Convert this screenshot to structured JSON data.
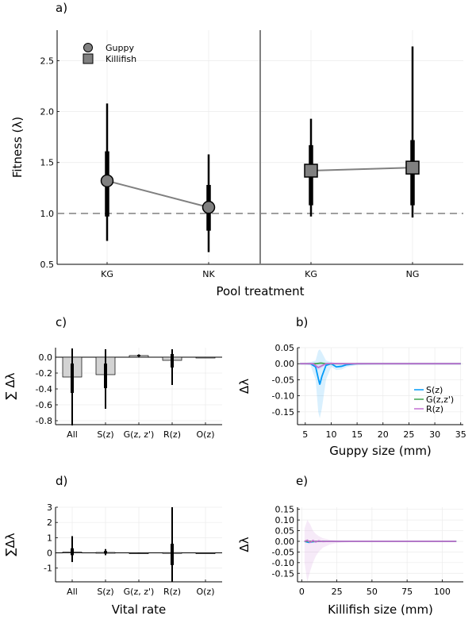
{
  "chart_data": [
    {
      "panel": "a)",
      "type": "scatter",
      "xlabel": "Pool treatment",
      "ylabel": "Fitness (λ)",
      "ylim": [
        0.5,
        2.8
      ],
      "yticks": [
        0.5,
        1.0,
        1.5,
        2.0,
        2.5
      ],
      "ytick_labels": [
        "0.5",
        "1.0",
        "1.5",
        "2.0",
        "2.5"
      ],
      "categories": [
        "KG",
        "NK",
        "KG",
        "NG"
      ],
      "reference_line": 1.0,
      "legend": {
        "position": "top-left",
        "entries": [
          "Guppy",
          "Killifish"
        ]
      },
      "series": [
        {
          "name": "Guppy",
          "marker": "circle",
          "color": "#808080",
          "points": [
            {
              "cat": 0,
              "y": 1.32,
              "lo95": 0.73,
              "hi95": 2.08,
              "lo50": 0.97,
              "hi50": 1.61
            },
            {
              "cat": 1,
              "y": 1.06,
              "lo95": 0.62,
              "hi95": 1.58,
              "lo50": 0.83,
              "hi50": 1.28
            }
          ]
        },
        {
          "name": "Killifish",
          "marker": "square",
          "color": "#808080",
          "points": [
            {
              "cat": 2,
              "y": 1.42,
              "lo95": 0.97,
              "hi95": 1.93,
              "lo50": 1.08,
              "hi50": 1.67
            },
            {
              "cat": 3,
              "y": 1.45,
              "lo95": 0.96,
              "hi95": 2.64,
              "lo50": 1.08,
              "hi50": 1.72
            }
          ]
        }
      ]
    },
    {
      "panel": "c)",
      "type": "bar",
      "xlabel": "",
      "ylabel": "∑ Δλ",
      "ylim": [
        -0.85,
        0.12
      ],
      "yticks": [
        0.0,
        -0.2,
        -0.4,
        -0.6,
        -0.8
      ],
      "ytick_labels": [
        "0.0",
        "-0.2",
        "-0.4",
        "-0.6",
        "-0.8"
      ],
      "categories": [
        "All",
        "S(z)",
        "G(z, z')",
        "R(z)",
        "O(z)"
      ],
      "values": [
        -0.25,
        -0.22,
        0.02,
        -0.04,
        0.0
      ],
      "interval95": [
        [
          -0.86,
          0.11
        ],
        [
          -0.65,
          0.1
        ],
        [
          0.005,
          0.035
        ],
        [
          -0.35,
          0.1
        ],
        [
          0,
          0
        ]
      ],
      "interval50": [
        [
          -0.45,
          -0.08
        ],
        [
          -0.39,
          -0.08
        ],
        [
          0.01,
          0.03
        ],
        [
          -0.13,
          0.04
        ],
        [
          0,
          0
        ]
      ]
    },
    {
      "panel": "b)",
      "type": "line",
      "xlabel": "Guppy size (mm)",
      "ylabel": "Δλ",
      "xlim": [
        3.5,
        35.5
      ],
      "ylim": [
        -0.19,
        0.05
      ],
      "xticks": [
        5,
        10,
        15,
        20,
        25,
        30,
        35
      ],
      "xtick_labels": [
        "5",
        "10",
        "15",
        "20",
        "25",
        "30",
        "35"
      ],
      "yticks": [
        0.05,
        0.0,
        -0.05,
        -0.1,
        -0.15
      ],
      "ytick_labels": [
        "0.05",
        "0.00",
        "-0.05",
        "-0.10",
        "-0.15"
      ],
      "legend": {
        "position": "bottom-right",
        "entries": [
          "S(z)",
          "G(z,z')",
          "R(z)"
        ]
      },
      "series": [
        {
          "name": "S(z)",
          "color": "#009af9",
          "x": [
            4,
            6,
            7,
            7.5,
            7.8,
            8.2,
            9,
            10,
            11,
            12,
            13,
            15,
            20,
            25,
            35
          ],
          "y": [
            0,
            0,
            -0.01,
            -0.045,
            -0.065,
            -0.04,
            -0.005,
            0,
            -0.01,
            -0.008,
            -0.003,
            0,
            0,
            0,
            0
          ],
          "band_lo": [
            0,
            -0.005,
            -0.05,
            -0.15,
            -0.17,
            -0.14,
            -0.05,
            -0.01,
            -0.02,
            -0.018,
            -0.01,
            -0.004,
            -0.002,
            0,
            0
          ],
          "band_hi": [
            0,
            0.005,
            0.01,
            0.04,
            0.045,
            0.035,
            0.01,
            0.005,
            0.002,
            0.003,
            0.003,
            0.002,
            0.001,
            0,
            0
          ]
        },
        {
          "name": "G(z,z')",
          "color": "#3da44d",
          "x": [
            4,
            7,
            8,
            9,
            12,
            35
          ],
          "y": [
            0,
            0,
            0.002,
            0,
            0,
            0
          ]
        },
        {
          "name": "R(z)",
          "color": "#c271d2",
          "x": [
            4,
            6.5,
            7.5,
            8,
            9,
            10,
            12,
            35
          ],
          "y": [
            0,
            0,
            -0.012,
            -0.008,
            0,
            0.001,
            0,
            0
          ],
          "band_lo": [
            0,
            -0.002,
            -0.02,
            -0.015,
            -0.004,
            -0.002,
            -0.001,
            0
          ],
          "band_hi": [
            0,
            0.002,
            0.004,
            0.004,
            0.002,
            0.002,
            0.001,
            0
          ]
        }
      ]
    },
    {
      "panel": "d)",
      "type": "bar",
      "xlabel": "Vital rate",
      "ylabel": "∑Δλ",
      "ylim": [
        -1.9,
        3.0
      ],
      "yticks": [
        3,
        2,
        1,
        0,
        -1
      ],
      "ytick_labels": [
        "3",
        "2",
        "1",
        "0",
        "-1"
      ],
      "categories": [
        "All",
        "S(z)",
        "G(z, z')",
        "R(z)",
        "O(z)"
      ],
      "values": [
        0.05,
        0.03,
        0.0,
        0.02,
        0.0
      ],
      "interval95": [
        [
          -0.6,
          1.1
        ],
        [
          -0.15,
          0.25
        ],
        [
          -0.02,
          0.02
        ],
        [
          -1.9,
          3.0
        ],
        [
          0,
          0
        ]
      ],
      "interval50": [
        [
          -0.15,
          0.3
        ],
        [
          -0.05,
          0.12
        ],
        [
          -0.01,
          0.01
        ],
        [
          -0.8,
          0.6
        ],
        [
          0,
          0
        ]
      ]
    },
    {
      "panel": "e)",
      "type": "line",
      "xlabel": "Killifish size (mm)",
      "ylabel": "Δλ",
      "xlim": [
        -3,
        115
      ],
      "ylim": [
        -0.19,
        0.16
      ],
      "xticks": [
        0,
        25,
        50,
        75,
        100
      ],
      "xtick_labels": [
        "0",
        "25",
        "50",
        "75",
        "100"
      ],
      "yticks": [
        0.15,
        0.1,
        0.05,
        0.0,
        -0.05,
        -0.1,
        -0.15
      ],
      "ytick_labels": [
        "0.15",
        "0.10",
        "0.05",
        "0.00",
        "-0.05",
        "-0.10",
        "-0.15"
      ],
      "series": [
        {
          "name": "S(z)",
          "color": "#009af9",
          "x": [
            2,
            5,
            8,
            12,
            20,
            30,
            110
          ],
          "y": [
            0,
            -0.005,
            -0.002,
            0,
            0,
            0,
            0
          ]
        },
        {
          "name": "G(z,z')",
          "color": "#3da44d",
          "x": [
            2,
            110
          ],
          "y": [
            0,
            0
          ]
        },
        {
          "name": "R(z)",
          "color": "#c271d2",
          "x": [
            2,
            4,
            6,
            8,
            10,
            12,
            15,
            20,
            25,
            30,
            40,
            110
          ],
          "y": [
            0,
            0.005,
            -0.005,
            0.004,
            -0.003,
            0.002,
            -0.001,
            0,
            0,
            0,
            0,
            0
          ],
          "band_lo": [
            -0.1,
            -0.19,
            -0.14,
            -0.1,
            -0.07,
            -0.05,
            -0.03,
            -0.015,
            -0.008,
            -0.005,
            -0.002,
            0
          ],
          "band_hi": [
            0.06,
            0.1,
            0.08,
            0.05,
            0.035,
            0.025,
            0.015,
            0.008,
            0.004,
            0.002,
            0.001,
            0
          ]
        }
      ]
    }
  ]
}
